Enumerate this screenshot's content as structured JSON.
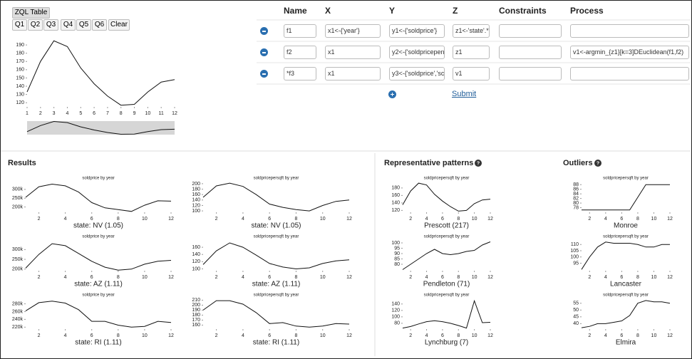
{
  "toolbar": {
    "tab": "ZQL Table",
    "buttons": [
      "Q1",
      "Q2",
      "Q3",
      "Q4",
      "Q5",
      "Q6",
      "Clear"
    ]
  },
  "sketch": {
    "type": "line",
    "color": "#3a9e98",
    "x": [
      1,
      2,
      3,
      4,
      5,
      6,
      7,
      8,
      9,
      10,
      11,
      12
    ],
    "xlim": [
      1,
      12
    ],
    "xticks": [
      1,
      2,
      3,
      4,
      5,
      6,
      7,
      8,
      9,
      10,
      11,
      12
    ],
    "values": [
      133,
      170,
      195,
      188,
      162,
      143,
      128,
      117,
      118,
      133,
      145,
      148
    ],
    "ylim": [
      115,
      197
    ],
    "yticks": [
      120,
      130,
      140,
      150,
      160,
      170,
      180,
      190
    ]
  },
  "table": {
    "headers": [
      "Name",
      "X",
      "Y",
      "Z",
      "Constraints",
      "Process"
    ],
    "rows": [
      {
        "name": "f1",
        "x": "x1<-{'year'}",
        "y": "y1<-{'soldprice'}",
        "z": "z1<-'state'.*"
      },
      {
        "name": "f2",
        "x": "x1",
        "y": "y2<-{'soldpricepen",
        "z": "z1",
        "process": "v1<-argmin_{z1}[k=3]DEuclidean(f1,f2)"
      },
      {
        "name": "*f3",
        "x": "x1",
        "y": "y3<-{'soldprice','sc",
        "z": "v1"
      }
    ],
    "submit": "Submit"
  },
  "results": {
    "title": "Results",
    "charts": [
      {
        "type": "line",
        "title": "soldprice by year",
        "label": "state: NV (1.05)",
        "x": [
          1,
          2,
          3,
          4,
          5,
          6,
          7,
          8,
          9,
          10,
          11,
          12
        ],
        "xlim": [
          1,
          12
        ],
        "xticks": [
          2,
          4,
          6,
          8,
          10,
          12
        ],
        "values": [
          255000,
          315000,
          330000,
          320000,
          285000,
          225000,
          195000,
          185000,
          175000,
          210000,
          235000,
          233000
        ],
        "ylim": [
          170000,
          340000
        ],
        "yticks": [
          {
            "value": 200000,
            "label": "200k"
          },
          {
            "value": 250000,
            "label": "250k"
          },
          {
            "value": 300000,
            "label": "300k"
          }
        ]
      },
      {
        "type": "line",
        "title": "soldpricepersqft by year",
        "label": "state: NV (1.05)",
        "x": [
          1,
          2,
          3,
          4,
          5,
          6,
          7,
          8,
          9,
          10,
          11,
          12
        ],
        "xlim": [
          1,
          12
        ],
        "xticks": [
          2,
          4,
          6,
          8,
          10,
          12
        ],
        "values": [
          150,
          192,
          202,
          190,
          160,
          125,
          113,
          105,
          100,
          120,
          135,
          140
        ],
        "ylim": [
          95,
          205
        ],
        "yticks": [
          100,
          120,
          140,
          160,
          180,
          200
        ]
      },
      {
        "type": "line",
        "title": "soldprice by year",
        "label": "state: AZ (1.11)",
        "x": [
          1,
          2,
          3,
          4,
          5,
          6,
          7,
          8,
          9,
          10,
          11,
          12
        ],
        "xlim": [
          1,
          12
        ],
        "xticks": [
          2,
          4,
          6,
          8,
          10,
          12
        ],
        "values": [
          205000,
          275000,
          330000,
          320000,
          280000,
          240000,
          210000,
          195000,
          200000,
          225000,
          240000,
          245000
        ],
        "ylim": [
          192000,
          345000
        ],
        "yticks": [
          {
            "value": 200000,
            "label": "200k"
          },
          {
            "value": 250000,
            "label": "250k"
          },
          {
            "value": 300000,
            "label": "300k"
          }
        ]
      },
      {
        "type": "line",
        "title": "soldpricepersqft by year",
        "label": "state: AZ (1.11)",
        "x": [
          1,
          2,
          3,
          4,
          5,
          6,
          7,
          8,
          9,
          10,
          11,
          12
        ],
        "xlim": [
          1,
          12
        ],
        "xticks": [
          2,
          4,
          6,
          8,
          10,
          12
        ],
        "values": [
          112,
          150,
          172,
          160,
          138,
          115,
          105,
          100,
          103,
          115,
          122,
          125
        ],
        "ylim": [
          95,
          178
        ],
        "yticks": [
          100,
          120,
          140,
          160
        ]
      },
      {
        "type": "line",
        "title": "soldprice by year",
        "label": "state: RI (1.11)",
        "x": [
          1,
          2,
          3,
          4,
          5,
          6,
          7,
          8,
          9,
          10,
          11,
          12
        ],
        "xlim": [
          1,
          12
        ],
        "xticks": [
          2,
          4,
          6,
          8,
          10,
          12
        ],
        "values": [
          262000,
          283000,
          287000,
          282000,
          265000,
          235000,
          235000,
          225000,
          220000,
          222000,
          235000,
          232000
        ],
        "ylim": [
          215000,
          292000
        ],
        "yticks": [
          {
            "value": 220000,
            "label": "220k"
          },
          {
            "value": 240000,
            "label": "240k"
          },
          {
            "value": 260000,
            "label": "260k"
          },
          {
            "value": 280000,
            "label": "280k"
          }
        ]
      },
      {
        "type": "line",
        "title": "soldpricepersqft by year",
        "label": "state: RI (1.11)",
        "x": [
          1,
          2,
          3,
          4,
          5,
          6,
          7,
          8,
          9,
          10,
          11,
          12
        ],
        "xlim": [
          1,
          12
        ],
        "xticks": [
          2,
          4,
          6,
          8,
          10,
          12
        ],
        "values": [
          190,
          209,
          209,
          202,
          185,
          163,
          165,
          158,
          156,
          158,
          163,
          162
        ],
        "ylim": [
          152,
          212
        ],
        "yticks": [
          160,
          170,
          180,
          190,
          200,
          210
        ]
      }
    ]
  },
  "patterns": {
    "title": "Representative patterns",
    "charts": [
      {
        "type": "line",
        "title": "soldpricepersqft by year",
        "label": "Prescott (217)",
        "x": [
          1,
          2,
          3,
          4,
          5,
          6,
          7,
          8,
          9,
          10,
          11,
          12
        ],
        "xlim": [
          1,
          12
        ],
        "xticks": [
          2,
          4,
          6,
          8,
          10,
          12
        ],
        "values": [
          135,
          172,
          193,
          188,
          163,
          145,
          130,
          118,
          120,
          138,
          148,
          150
        ],
        "ylim": [
          115,
          195
        ],
        "yticks": [
          120,
          140,
          160,
          180
        ]
      },
      {
        "type": "line",
        "title": "soldpricepersqft by year",
        "label": "Pendleton (71)",
        "x": [
          1,
          2,
          3,
          4,
          5,
          6,
          7,
          8,
          9,
          10,
          11,
          12
        ],
        "xlim": [
          1,
          12
        ],
        "xticks": [
          2,
          4,
          6,
          8,
          10,
          12
        ],
        "values": [
          75,
          80,
          85,
          90,
          94,
          90,
          89,
          90,
          92,
          93,
          98,
          101
        ],
        "ylim": [
          74,
          102
        ],
        "yticks": [
          80,
          85,
          90,
          95,
          100
        ]
      },
      {
        "type": "line",
        "title": "soldpricepersqft by year",
        "label": "Lynchburg (7)",
        "x": [
          1,
          2,
          3,
          4,
          5,
          6,
          7,
          8,
          9,
          10,
          11,
          12
        ],
        "xlim": [
          1,
          12
        ],
        "xticks": [
          2,
          4,
          6,
          8,
          10,
          12
        ],
        "values": [
          65,
          70,
          78,
          85,
          88,
          85,
          80,
          73,
          65,
          150,
          82,
          83
        ],
        "ylim": [
          62,
          155
        ],
        "yticks": [
          80,
          100,
          120,
          140
        ]
      }
    ]
  },
  "outliers": {
    "title": "Outliers",
    "charts": [
      {
        "type": "line",
        "title": "soldpricepersqft by year",
        "label": "Monroe",
        "x": [
          1,
          2,
          3,
          4,
          5,
          6,
          7,
          8,
          9,
          10,
          11,
          12
        ],
        "xlim": [
          1,
          12
        ],
        "xticks": [
          2,
          4,
          6,
          8,
          10,
          12
        ],
        "values": [
          77,
          77,
          77,
          77,
          77,
          77,
          77,
          82.5,
          88,
          88,
          88,
          88
        ],
        "ylim": [
          76,
          89
        ],
        "yticks": [
          78,
          80,
          82,
          84,
          86,
          88
        ]
      },
      {
        "type": "line",
        "title": "soldpricepersqft by year",
        "label": "Lancaster",
        "x": [
          1,
          2,
          3,
          4,
          5,
          6,
          7,
          8,
          9,
          10,
          11,
          12
        ],
        "xlim": [
          1,
          12
        ],
        "xticks": [
          2,
          4,
          6,
          8,
          10,
          12
        ],
        "values": [
          90,
          100,
          108,
          112,
          111,
          111,
          111,
          110,
          108,
          108,
          110,
          110
        ],
        "ylim": [
          89,
          113
        ],
        "yticks": [
          95,
          100,
          105,
          110
        ]
      },
      {
        "type": "line",
        "title": "soldpricepersqft by year",
        "label": "Elmira",
        "x": [
          1,
          2,
          3,
          4,
          5,
          6,
          7,
          8,
          9,
          10,
          11,
          12
        ],
        "xlim": [
          1,
          12
        ],
        "xticks": [
          2,
          4,
          6,
          8,
          10,
          12
        ],
        "values": [
          37,
          38,
          40,
          40,
          41,
          42,
          46,
          55,
          57,
          56,
          56,
          55
        ],
        "ylim": [
          36,
          58
        ],
        "yticks": [
          40,
          45,
          50,
          55
        ]
      }
    ]
  }
}
